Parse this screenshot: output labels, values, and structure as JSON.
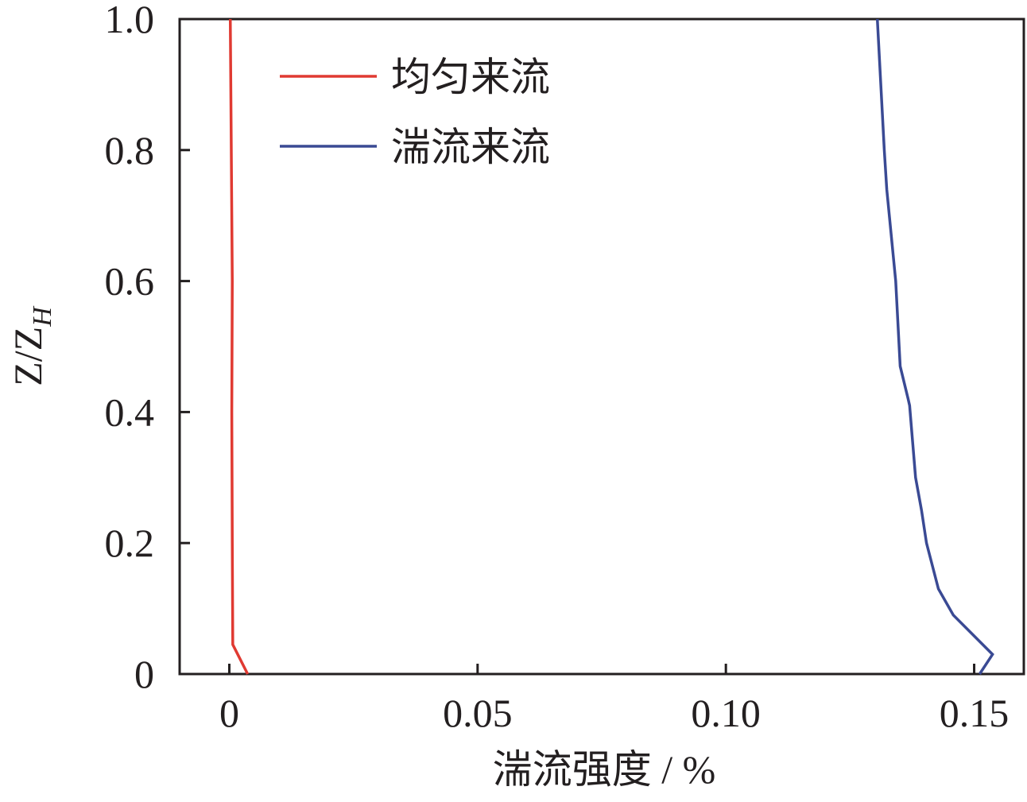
{
  "chart_data": {
    "type": "line",
    "x_label": "湍流强度 / %",
    "y_label": "Z/Z",
    "y_label_sub": "H",
    "xlim": [
      -0.01,
      0.16
    ],
    "xticks": [
      0,
      0.05,
      {
        "value": 0.1,
        "label": "0.10"
      },
      0.15
    ],
    "ylim": [
      0,
      1
    ],
    "yticks": [
      0,
      0.2,
      0.4,
      0.6,
      0.8,
      {
        "value": 1,
        "label": "1.0"
      }
    ],
    "legend": "upper-left",
    "series": [
      {
        "name": "均匀来流",
        "color": "#e03a32",
        "x": [
          0.0037,
          0.0007,
          0.0006,
          0.0005,
          0.0006,
          0.0004,
          0.0002
        ],
        "values": [
          0,
          0.045,
          0.2,
          0.4,
          0.6,
          0.8,
          1.0
        ]
      },
      {
        "name": "湍流来流",
        "color": "#3a4a94",
        "x": [
          0.1511,
          0.1537,
          0.1458,
          0.1428,
          0.1404,
          0.1394,
          0.1382,
          0.137,
          0.1367,
          0.1351,
          0.1342,
          0.1324,
          0.1319,
          0.1305
        ],
        "values": [
          0,
          0.03,
          0.09,
          0.13,
          0.2,
          0.25,
          0.3,
          0.41,
          0.42,
          0.47,
          0.6,
          0.74,
          0.8,
          1.0
        ]
      }
    ]
  }
}
